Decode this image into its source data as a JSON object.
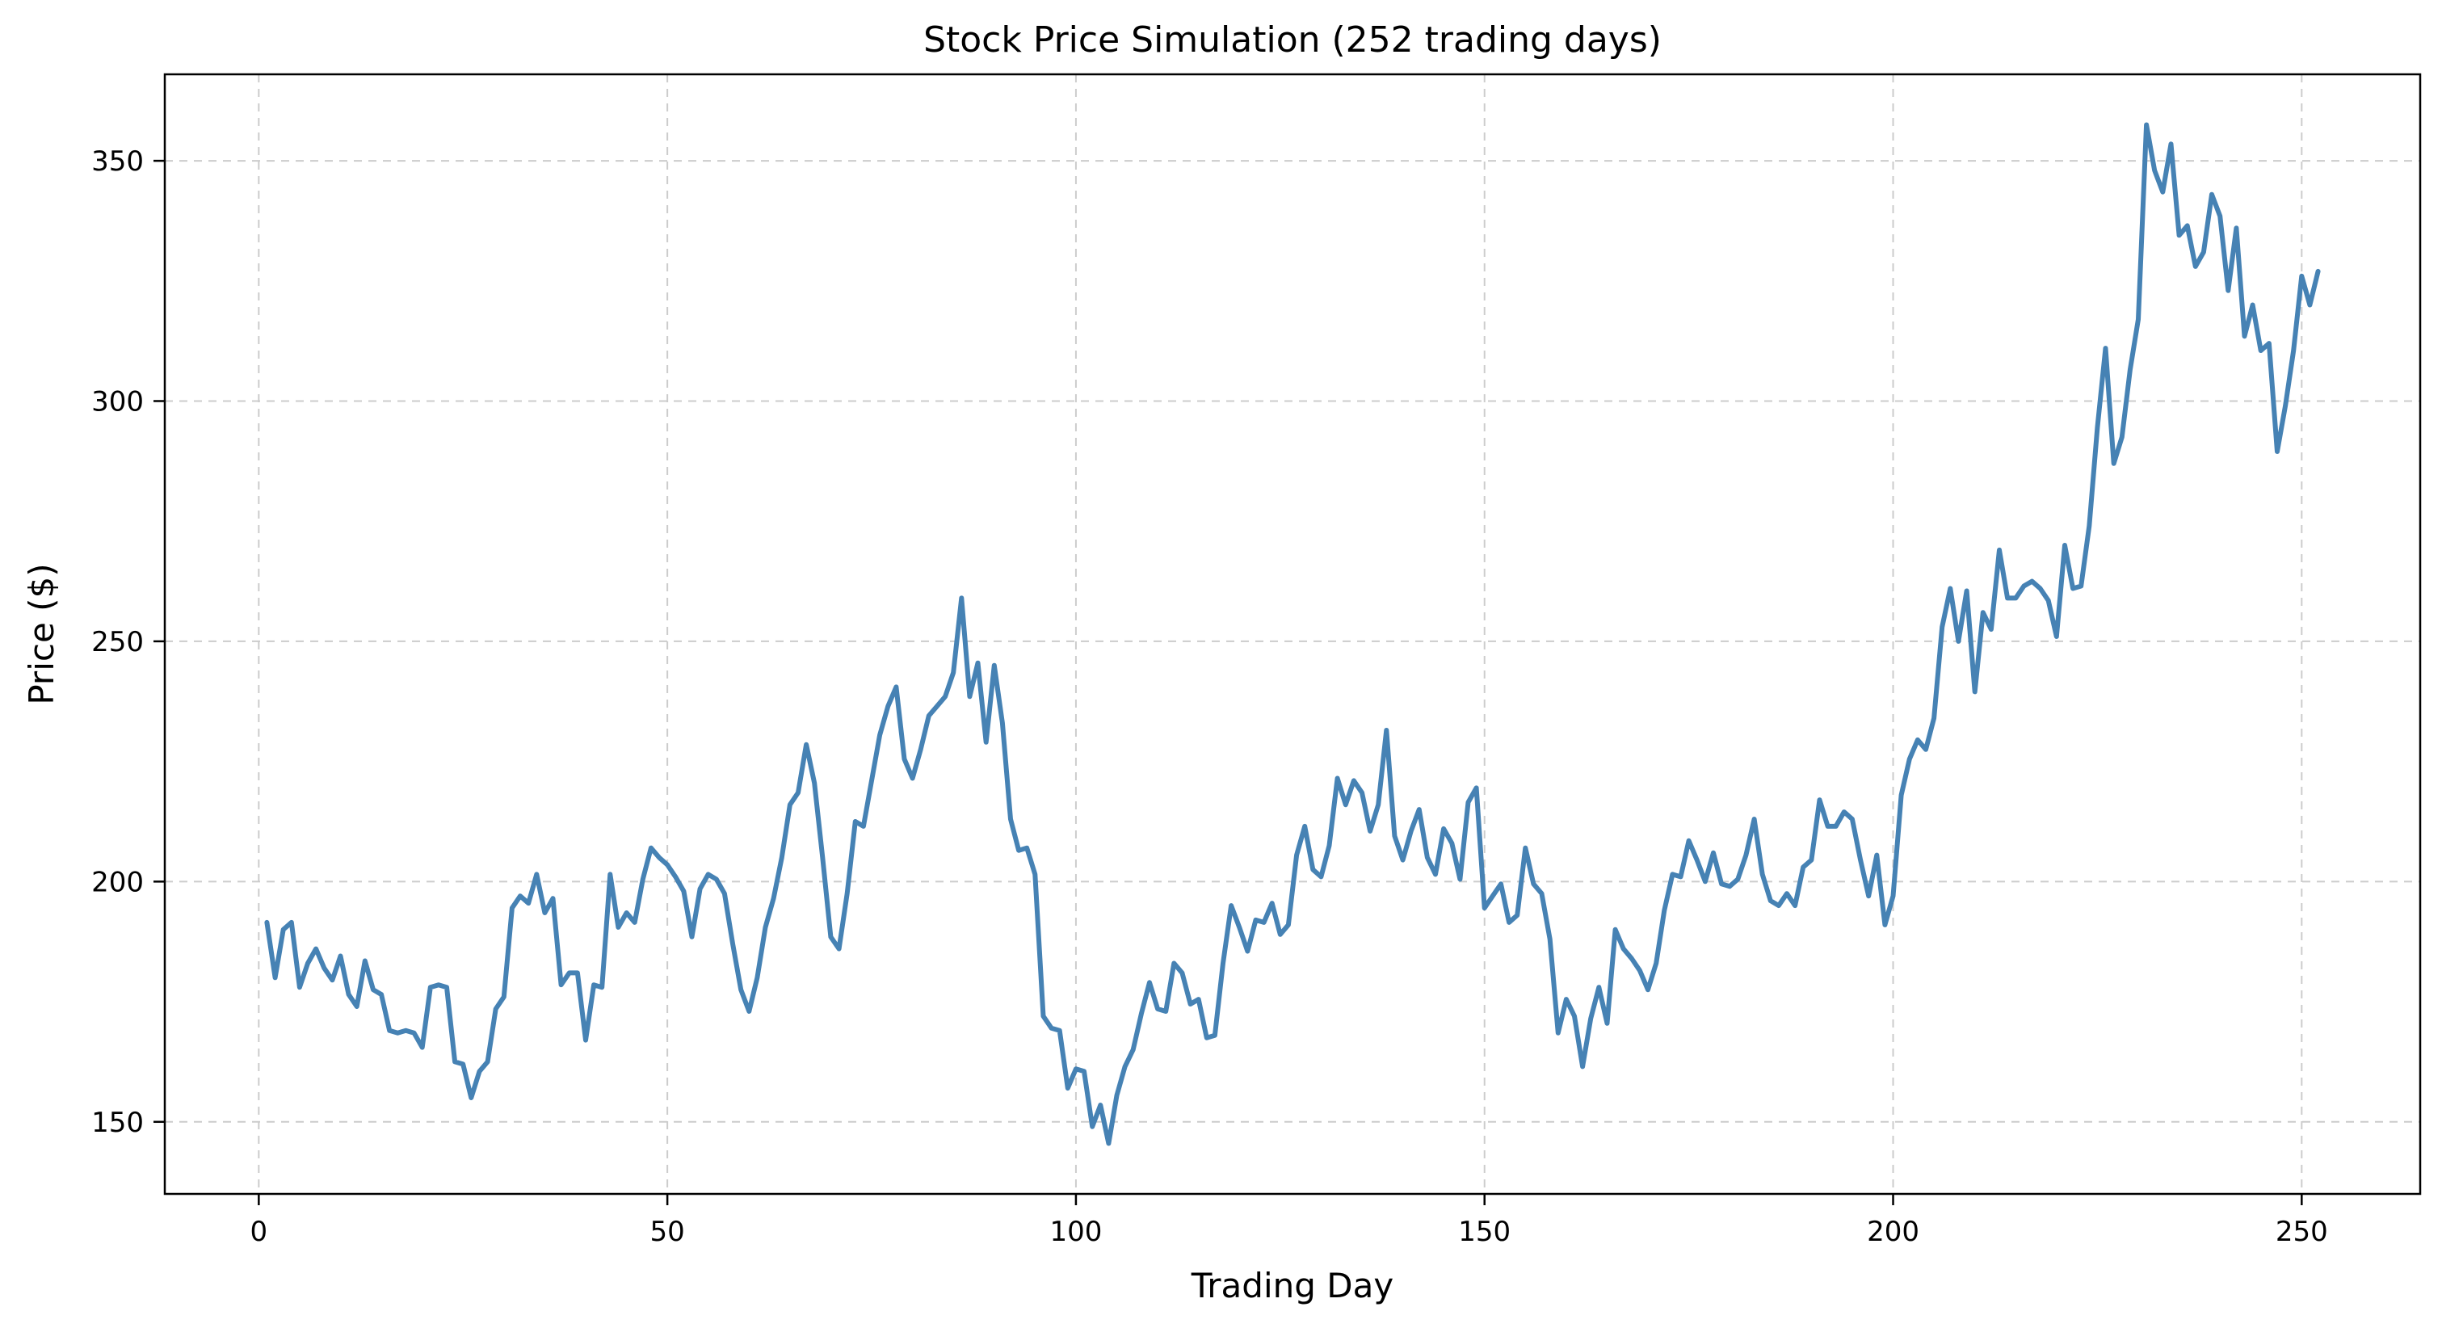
{
  "chart_data": {
    "type": "line",
    "title": "Stock Price Simulation (252 trading days)",
    "xlabel": "Trading Day",
    "ylabel": "Price ($)",
    "xlim": [
      -11.5,
      264.5
    ],
    "ylim": [
      135,
      368
    ],
    "xticks": [
      0,
      50,
      100,
      150,
      200,
      250
    ],
    "yticks": [
      150,
      200,
      250,
      300,
      350
    ],
    "grid": true,
    "legend": "none",
    "line_color": "#4682b4",
    "series": [
      {
        "x": [
          1,
          2,
          3,
          4,
          5,
          6,
          7,
          8,
          9,
          10,
          11,
          12,
          13,
          14,
          15,
          16,
          17,
          18,
          19,
          20,
          21,
          22,
          23,
          24,
          25,
          26,
          27,
          28,
          29,
          30,
          31,
          32,
          33,
          34,
          35,
          36,
          37,
          38,
          39,
          40,
          41,
          42,
          43,
          44,
          45,
          46,
          47,
          48,
          49,
          50,
          51,
          52,
          53,
          54,
          55,
          56,
          57,
          58,
          59,
          60,
          61,
          62,
          63,
          64,
          65,
          66,
          67,
          68,
          69,
          70,
          71,
          72,
          73,
          74,
          75,
          76,
          77,
          78,
          79,
          80,
          81,
          82,
          83,
          84,
          85,
          86,
          87,
          88,
          89,
          90,
          91,
          92,
          93,
          94,
          95,
          96,
          97,
          98,
          99,
          100,
          101,
          102,
          103,
          104,
          105,
          106,
          107,
          108,
          109,
          110,
          111,
          112,
          113,
          114,
          115,
          116,
          117,
          118,
          119,
          120,
          121,
          122,
          123,
          124,
          125,
          126,
          127,
          128,
          129,
          130,
          131,
          132,
          133,
          134,
          135,
          136,
          137,
          138,
          139,
          140,
          141,
          142,
          143,
          144,
          145,
          146,
          147,
          148,
          149,
          150,
          151,
          152,
          153,
          154,
          155,
          156,
          157,
          158,
          159,
          160,
          161,
          162,
          163,
          164,
          165,
          166,
          167,
          168,
          169,
          170,
          171,
          172,
          173,
          174,
          175,
          176,
          177,
          178,
          179,
          180,
          181,
          182,
          183,
          184,
          185,
          186,
          187,
          188,
          189,
          190,
          191,
          192,
          193,
          194,
          195,
          196,
          197,
          198,
          199,
          200,
          201,
          202,
          203,
          204,
          205,
          206,
          207,
          208,
          209,
          210,
          211,
          212,
          213,
          214,
          215,
          216,
          217,
          218,
          219,
          220,
          221,
          222,
          223,
          224,
          225,
          226,
          227,
          228,
          229,
          230,
          231,
          232,
          233,
          234,
          235,
          236,
          237,
          238,
          239,
          240,
          241,
          242,
          243,
          244,
          245,
          246,
          247,
          248,
          249,
          250,
          251,
          252
        ],
        "values": [
          191.5,
          180,
          190,
          191.5,
          178,
          183,
          186,
          182,
          179.5,
          184.5,
          176.5,
          174,
          183.5,
          177.5,
          176.5,
          169,
          168.5,
          169,
          168.5,
          165.5,
          178,
          178.5,
          178,
          162.5,
          162,
          155,
          160.5,
          162.5,
          173.5,
          176,
          194.5,
          197,
          195.5,
          201.5,
          193.5,
          196.5,
          178.5,
          181,
          181,
          167,
          178.5,
          178,
          201.5,
          190.5,
          193.5,
          191.5,
          200.5,
          207,
          205,
          203.5,
          201,
          198,
          188.5,
          198.5,
          201.5,
          200.5,
          197.5,
          187,
          177.5,
          173,
          180,
          190.5,
          196.5,
          205,
          216,
          218.5,
          228.5,
          220.5,
          205,
          188.5,
          186,
          197.5,
          212.5,
          211.5,
          221,
          230.5,
          236.5,
          240.5,
          225.5,
          221.5,
          227.5,
          234.5,
          236.5,
          238.5,
          243.5,
          259,
          238.5,
          245.5,
          229,
          245,
          233,
          213,
          206.5,
          207,
          201.5,
          172,
          169.5,
          169,
          157,
          161,
          160.5,
          149,
          153.5,
          145.5,
          155.5,
          161.5,
          165,
          172.5,
          179,
          173.5,
          173,
          183,
          181,
          174.5,
          175.5,
          167.5,
          168,
          183,
          195,
          190.5,
          185.5,
          192,
          191.5,
          195.5,
          189,
          191,
          205.5,
          211.5,
          202.5,
          201,
          207.5,
          221.5,
          216,
          221,
          218.5,
          210.5,
          216,
          231.5,
          209.5,
          204.5,
          210.5,
          215,
          205,
          201.5,
          211,
          208,
          200.5,
          216.5,
          219.5,
          194.5,
          197,
          199.5,
          191.5,
          193,
          207,
          199.5,
          197.5,
          188,
          168.5,
          175.5,
          172,
          161.5,
          171.5,
          178,
          170.5,
          190,
          186,
          184,
          181.5,
          177.5,
          183,
          194,
          201.5,
          201,
          208.5,
          204.5,
          200,
          206,
          199.5,
          199,
          200.5,
          205.5,
          213,
          201.5,
          196,
          195,
          197.5,
          195,
          203,
          204.5,
          217,
          211.5,
          211.5,
          214.5,
          213,
          204.5,
          197,
          205.5,
          191,
          197,
          218,
          225.5,
          229.5,
          227.5,
          234,
          253,
          261,
          250,
          260.5,
          239.5,
          256,
          252.5,
          269,
          259,
          259,
          261.5,
          262.5,
          261,
          258.5,
          251,
          270,
          261,
          261.5,
          274,
          294.5,
          311,
          287,
          292.5,
          306.5,
          317,
          357.5,
          348,
          343.5,
          353.5,
          334.5,
          336.5,
          328,
          331,
          343,
          338.5,
          323,
          336,
          313.5,
          320,
          310.5,
          312,
          289.5,
          299,
          310.5,
          326,
          320,
          327
        ]
      }
    ]
  }
}
